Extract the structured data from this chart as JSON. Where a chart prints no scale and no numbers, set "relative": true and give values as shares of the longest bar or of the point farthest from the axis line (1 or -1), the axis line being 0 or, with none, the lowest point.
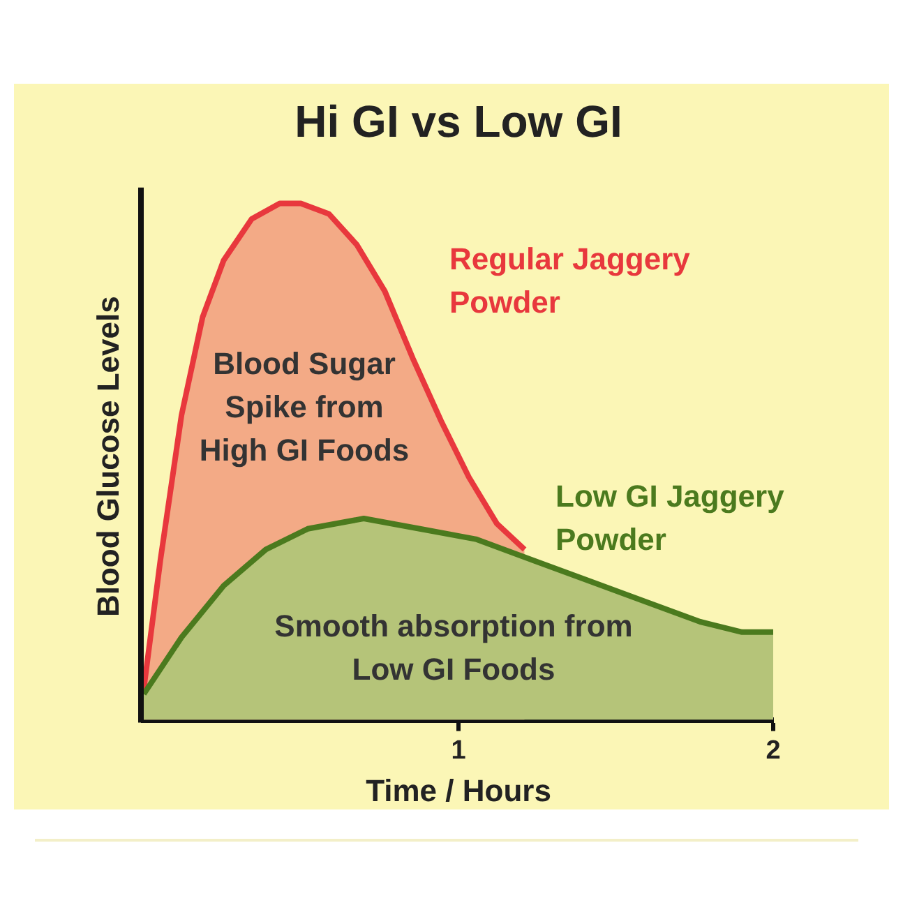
{
  "chart_data": {
    "type": "area",
    "title": "Hi GI vs Low GI",
    "xlabel": "Time / Hours",
    "ylabel": "Blood Glucose Levels",
    "relative": true,
    "xlim": [
      0,
      2
    ],
    "xticks": [
      1,
      2
    ],
    "grid": false,
    "legend": false,
    "marker": "none",
    "series": [
      {
        "name": "Regular Jaggery Powder",
        "color": "#e8383d",
        "x": [
          0,
          0.053,
          0.12,
          0.187,
          0.254,
          0.343,
          0.432,
          0.499,
          0.588,
          0.677,
          0.766,
          0.855,
          0.944,
          1.033,
          1.122,
          1.21
        ],
        "values": [
          0.06,
          0.31,
          0.59,
          0.78,
          0.89,
          0.97,
          1.0,
          1.0,
          0.98,
          0.92,
          0.83,
          0.7,
          0.58,
          0.47,
          0.38,
          0.33
        ]
      },
      {
        "name": "Low GI Jaggery Powder",
        "color": "#4b7a1e",
        "x": [
          0,
          0.12,
          0.254,
          0.388,
          0.521,
          0.699,
          0.877,
          1.055,
          1.233,
          1.411,
          1.59,
          1.768,
          1.901,
          2.0
        ],
        "values": [
          0.05,
          0.16,
          0.26,
          0.33,
          0.37,
          0.39,
          0.37,
          0.35,
          0.31,
          0.27,
          0.23,
          0.19,
          0.17,
          0.17
        ]
      }
    ],
    "annotations": [
      "Blood Sugar Spike from High GI Foods",
      "Smooth absorption from Low GI Foods"
    ]
  }
}
